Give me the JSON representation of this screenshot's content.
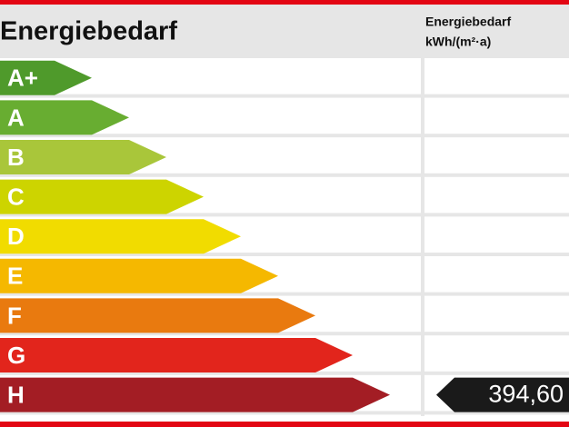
{
  "header": {
    "title": "Energiebedarf",
    "column_title": [
      "Energiebedarf",
      "kWh/(m²·a)"
    ]
  },
  "rows": [
    {
      "label": "A+",
      "color": "#4f9a2b"
    },
    {
      "label": "A",
      "color": "#68ad31"
    },
    {
      "label": "B",
      "color": "#a9c63a"
    },
    {
      "label": "C",
      "color": "#cdd400"
    },
    {
      "label": "D",
      "color": "#f1dc00"
    },
    {
      "label": "E",
      "color": "#f5b800"
    },
    {
      "label": "F",
      "color": "#e97a0f"
    },
    {
      "label": "G",
      "color": "#e2251c"
    },
    {
      "label": "H",
      "color": "#a31d24",
      "value": "394,60"
    }
  ]
}
